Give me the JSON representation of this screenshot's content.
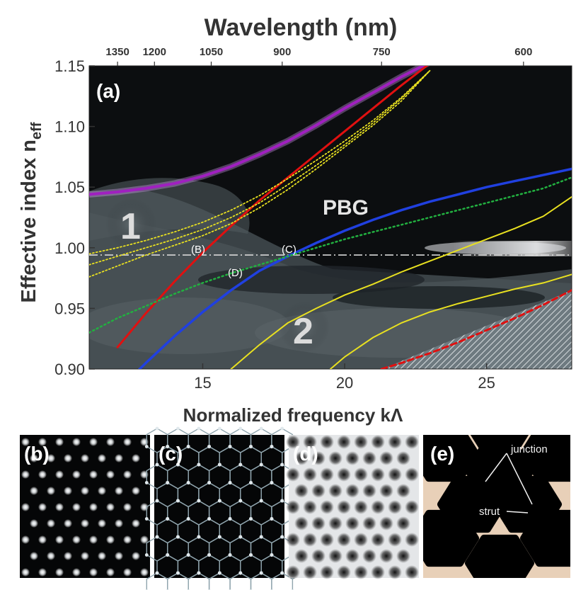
{
  "figure": {
    "top_axis_title": "Wavelength (nm)",
    "y_axis_title": "Effective index n",
    "y_axis_sub": "eff",
    "x_axis_title": "Normalized frequency kΛ",
    "panel_a": "(a)",
    "region_pbg": "PBG",
    "region_1": "1",
    "region_2": "2",
    "mode_b": "(B)",
    "mode_c": "(C)",
    "mode_d": "(D)"
  },
  "panels": {
    "b": "(b)",
    "c": "(c)",
    "d": "(d)",
    "e": "(e)",
    "e_junction": "junction",
    "e_strut": "strut"
  },
  "colors": {
    "band_edge_top": "#a020c0",
    "red_mode": "#e01010",
    "blue_mode": "#2040e0",
    "green_mode": "#22b040",
    "yellow_mode": "#e8e020",
    "glass": "#e8d0b8"
  },
  "chart_data": {
    "type": "line",
    "title": "Wavelength (nm)",
    "xlabel": "Normalized frequency kΛ",
    "ylabel": "Effective index n_eff",
    "xlim": [
      11,
      28
    ],
    "ylim": [
      0.9,
      1.15
    ],
    "x_ticks": [
      15,
      20,
      25
    ],
    "y_ticks": [
      0.9,
      0.95,
      1.0,
      1.05,
      1.1,
      1.15
    ],
    "x_tick_labels": [
      "15",
      "20",
      "25"
    ],
    "y_tick_labels": [
      "0.90",
      "0.95",
      "1.00",
      "1.05",
      "1.10",
      "1.15"
    ],
    "top_ticks": [
      {
        "label": "1350",
        "k": 12.0
      },
      {
        "label": "1200",
        "k": 13.3
      },
      {
        "label": "1050",
        "k": 15.3
      },
      {
        "label": "900",
        "k": 17.8
      },
      {
        "label": "750",
        "k": 21.3
      },
      {
        "label": "600",
        "k": 26.3
      }
    ],
    "reference_line": {
      "y": 0.994,
      "style": "dash-dot"
    },
    "series": [
      {
        "name": "upper band edge",
        "color": "purple",
        "x": [
          11,
          12,
          13,
          14,
          15,
          16,
          17,
          18,
          19,
          20,
          21,
          22,
          23
        ],
        "y": [
          1.044,
          1.046,
          1.049,
          1.053,
          1.059,
          1.067,
          1.077,
          1.088,
          1.101,
          1.115,
          1.128,
          1.141,
          1.153
        ]
      },
      {
        "name": "(B)",
        "color": "red",
        "x": [
          12,
          13,
          14,
          15,
          16,
          17,
          18,
          19,
          20,
          21,
          22,
          23
        ],
        "y": [
          0.918,
          0.946,
          0.972,
          0.996,
          1.018,
          1.039,
          1.058,
          1.077,
          1.096,
          1.115,
          1.134,
          1.152
        ]
      },
      {
        "name": "(C)",
        "color": "blue",
        "x": [
          12,
          13,
          14,
          15,
          16,
          17,
          18,
          19,
          20,
          21,
          22,
          23,
          24,
          25,
          26,
          27,
          28
        ],
        "y": [
          0.882,
          0.905,
          0.927,
          0.947,
          0.965,
          0.981,
          0.993,
          1.004,
          1.014,
          1.023,
          1.031,
          1.038,
          1.044,
          1.05,
          1.055,
          1.06,
          1.065
        ]
      },
      {
        "name": "(D)",
        "color": "green dotted",
        "x": [
          11,
          12,
          13,
          14,
          15,
          16,
          17,
          18,
          19,
          20,
          21,
          22,
          23,
          24,
          25,
          26,
          27,
          28
        ],
        "y": [
          0.93,
          0.942,
          0.952,
          0.962,
          0.971,
          0.979,
          0.986,
          0.993,
          1.0,
          1.007,
          1.013,
          1.019,
          1.025,
          1.031,
          1.037,
          1.043,
          1.049,
          1.058
        ]
      },
      {
        "name": "yellow upper",
        "color": "yellow",
        "x": [
          16,
          17,
          18,
          19,
          20,
          21,
          22,
          23,
          24,
          25,
          26,
          27,
          28
        ],
        "y": [
          0.9,
          0.92,
          0.938,
          0.95,
          0.961,
          0.97,
          0.98,
          0.989,
          0.998,
          1.007,
          1.016,
          1.026,
          1.042
        ]
      },
      {
        "name": "yellow lower",
        "color": "yellow",
        "x": [
          19.5,
          20,
          21,
          22,
          23,
          24,
          25,
          26,
          27,
          28
        ],
        "y": [
          0.9,
          0.91,
          0.926,
          0.938,
          0.947,
          0.954,
          0.96,
          0.966,
          0.971,
          0.978
        ]
      },
      {
        "name": "yellow dotted 1",
        "color": "yellow dotted",
        "x": [
          11,
          12,
          13,
          14,
          15,
          16,
          17,
          18,
          19,
          20,
          21,
          22,
          23
        ],
        "y": [
          0.995,
          1.0,
          1.006,
          1.013,
          1.021,
          1.031,
          1.043,
          1.057,
          1.072,
          1.088,
          1.105,
          1.124,
          1.146
        ]
      },
      {
        "name": "yellow dotted 2",
        "color": "yellow dotted",
        "x": [
          11,
          12,
          13,
          14,
          15,
          16,
          17,
          18,
          19,
          20,
          21,
          22,
          23
        ],
        "y": [
          0.986,
          0.993,
          1.0,
          1.007,
          1.015,
          1.025,
          1.037,
          1.052,
          1.068,
          1.085,
          1.103,
          1.123,
          1.146
        ]
      },
      {
        "name": "yellow dotted 3",
        "color": "yellow dotted",
        "x": [
          11,
          12,
          13,
          14,
          15,
          16,
          17,
          18,
          19,
          20,
          21,
          22,
          23
        ],
        "y": [
          0.976,
          0.985,
          0.994,
          1.002,
          1.01,
          1.02,
          1.033,
          1.048,
          1.065,
          1.083,
          1.101,
          1.121,
          1.146
        ]
      },
      {
        "name": "red dashed light line",
        "color": "red dashed",
        "x": [
          21.3,
          22,
          23,
          24,
          25,
          26,
          27,
          28
        ],
        "y": [
          0.9,
          0.905,
          0.913,
          0.922,
          0.932,
          0.942,
          0.953,
          0.965
        ]
      }
    ]
  }
}
